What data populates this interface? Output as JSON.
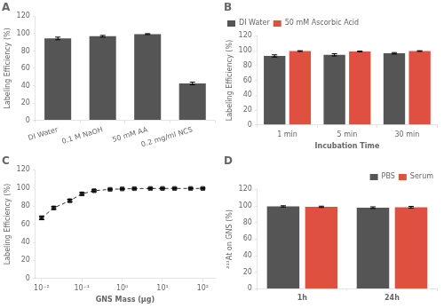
{
  "chart_data": [
    {
      "type": "bar",
      "title": "A",
      "categories": [
        "DI Water",
        "0.1 M NaOH",
        "50 mM AA",
        "0.2 mg/ml NCS"
      ],
      "values": [
        94.5,
        97.0,
        99.5,
        42.5
      ],
      "errors": [
        1.5,
        1.0,
        0.5,
        1.5
      ],
      "color": "#555555",
      "ylabel": "Labeling Efficiency (%)",
      "ylim": [
        0,
        120
      ],
      "yticks": [
        0,
        20,
        40,
        60,
        80,
        100,
        120
      ],
      "grid": false
    },
    {
      "type": "bar",
      "title": "B",
      "categories": [
        "1 min",
        "5 min",
        "30 min"
      ],
      "series": [
        {
          "name": "DI Water",
          "color": "#555555",
          "values": [
            93.0,
            94.5,
            96.5
          ],
          "errors": [
            1.5,
            1.5,
            1.0
          ]
        },
        {
          "name": "50 mM Ascorbic Acid",
          "color": "#e05040",
          "values": [
            99.5,
            99.0,
            99.5
          ],
          "errors": [
            0.5,
            0.5,
            0.5
          ]
        }
      ],
      "xlabel": "Incubation Time",
      "ylabel": "Labeling Efficiency (%)",
      "ylim": [
        0,
        120
      ],
      "yticks": [
        0,
        20,
        40,
        60,
        80,
        100,
        120
      ],
      "legend": "upper left",
      "grid": false
    },
    {
      "type": "line",
      "title": "C",
      "x": [
        0.01,
        0.02,
        0.05,
        0.1,
        0.2,
        0.5,
        1.0,
        2.0,
        5.0,
        10.0,
        20.0,
        50.0,
        100.0
      ],
      "values": [
        67.0,
        78.0,
        86.0,
        93.5,
        97.0,
        98.5,
        99.0,
        99.3,
        99.5,
        99.5,
        99.5,
        99.5,
        99.5
      ],
      "errors": [
        2.0,
        1.5,
        1.5,
        1.5,
        1.0,
        0.5,
        0.5,
        0.5,
        0.5,
        0.5,
        0.5,
        0.5,
        0.5
      ],
      "color": "#333333",
      "marker": "square",
      "line_style": "dashed",
      "log": "x",
      "xlabel": "GNS Mass (µg)",
      "ylabel": "Labeling Efficiency (%)",
      "xlim": [
        0.007,
        200
      ],
      "xticks": [
        {
          "value": 0.01,
          "label": "10⁻²"
        },
        {
          "value": 0.1,
          "label": "10⁻¹"
        },
        {
          "value": 1,
          "label": "10⁰"
        },
        {
          "value": 10,
          "label": "10¹"
        },
        {
          "value": 100,
          "label": "10²"
        }
      ],
      "ylim": [
        0,
        120
      ],
      "yticks": [
        0,
        20,
        40,
        60,
        80,
        100,
        120
      ],
      "grid": false
    },
    {
      "type": "bar",
      "title": "D",
      "categories": [
        "1h",
        "24h"
      ],
      "series": [
        {
          "name": "PBS",
          "color": "#555555",
          "values": [
            99.5,
            98.0
          ],
          "errors": [
            0.8,
            1.0
          ]
        },
        {
          "name": "Serum",
          "color": "#e05040",
          "values": [
            99.0,
            98.5
          ],
          "errors": [
            0.8,
            1.0
          ]
        }
      ],
      "ylabel": "²¹¹At on GNS (%)",
      "ylim": [
        0,
        120
      ],
      "yticks": [
        0,
        20,
        40,
        60,
        80,
        100,
        120
      ],
      "legend": "upper right",
      "grid": false
    }
  ]
}
